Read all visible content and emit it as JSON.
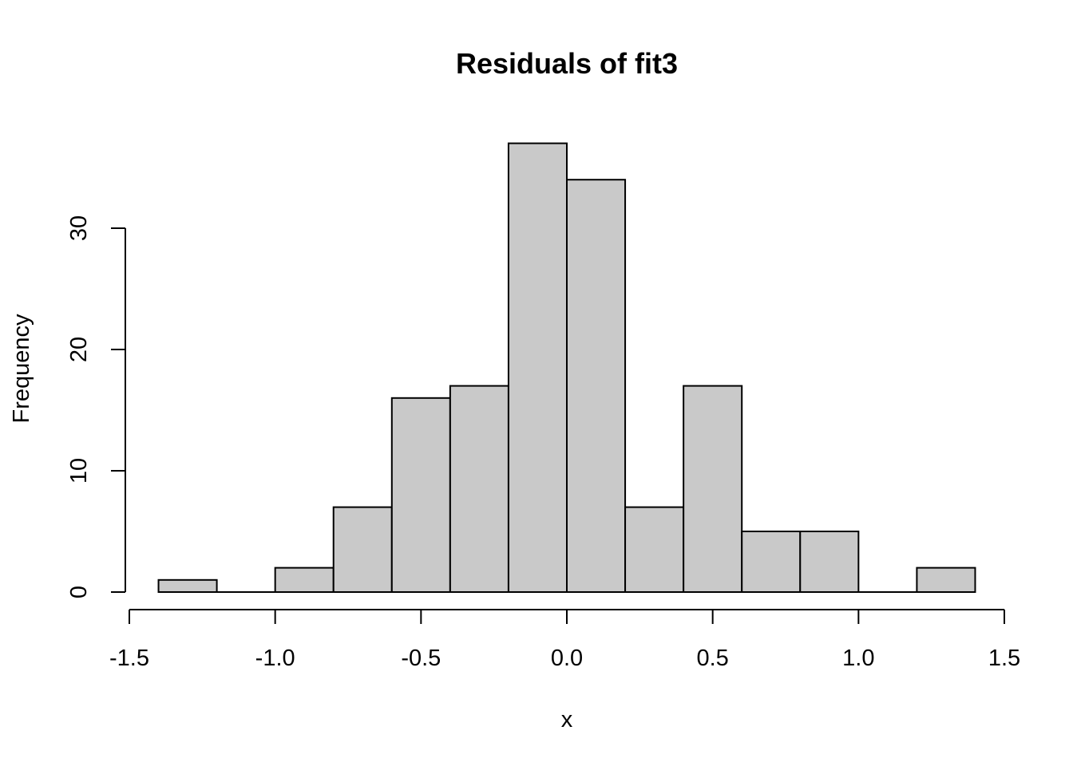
{
  "chart_data": {
    "type": "bar",
    "title": "Residuals of fit3",
    "xlabel": "x",
    "ylabel": "Frequency",
    "bins": [
      {
        "x0": -1.4,
        "x1": -1.2,
        "count": 1
      },
      {
        "x0": -1.2,
        "x1": -1.0,
        "count": 0
      },
      {
        "x0": -1.0,
        "x1": -0.8,
        "count": 2
      },
      {
        "x0": -0.8,
        "x1": -0.6,
        "count": 7
      },
      {
        "x0": -0.6,
        "x1": -0.4,
        "count": 16
      },
      {
        "x0": -0.4,
        "x1": -0.2,
        "count": 17
      },
      {
        "x0": -0.2,
        "x1": 0.0,
        "count": 37
      },
      {
        "x0": 0.0,
        "x1": 0.2,
        "count": 34
      },
      {
        "x0": 0.2,
        "x1": 0.4,
        "count": 7
      },
      {
        "x0": 0.4,
        "x1": 0.6,
        "count": 17
      },
      {
        "x0": 0.6,
        "x1": 0.8,
        "count": 5
      },
      {
        "x0": 0.8,
        "x1": 1.0,
        "count": 5
      },
      {
        "x0": 1.0,
        "x1": 1.2,
        "count": 0
      },
      {
        "x0": 1.2,
        "x1": 1.4,
        "count": 2
      }
    ],
    "xticks": [
      {
        "value": -1.5,
        "label": "-1.5"
      },
      {
        "value": -1.0,
        "label": "-1.0"
      },
      {
        "value": -0.5,
        "label": "-0.5"
      },
      {
        "value": 0.0,
        "label": "0.0"
      },
      {
        "value": 0.5,
        "label": "0.5"
      },
      {
        "value": 1.0,
        "label": "1.0"
      },
      {
        "value": 1.5,
        "label": "1.5"
      }
    ],
    "yticks": [
      {
        "value": 0,
        "label": "0"
      },
      {
        "value": 10,
        "label": "10"
      },
      {
        "value": 20,
        "label": "20"
      },
      {
        "value": 30,
        "label": "30"
      }
    ],
    "xlim": [
      -1.5,
      1.5
    ],
    "ylim": [
      0,
      37
    ],
    "grid": false,
    "bar_fill": "#c9c9c9",
    "bar_stroke": "#000000"
  }
}
